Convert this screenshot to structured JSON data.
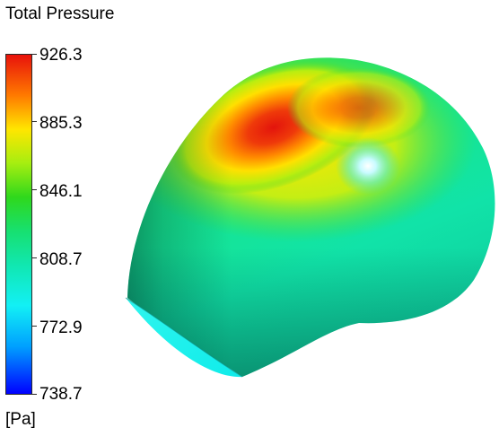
{
  "legend": {
    "title": "Total Pressure",
    "unit": "[Pa]",
    "min": 738.7,
    "max": 926.3,
    "ticks": [
      "926.3",
      "885.3",
      "846.1",
      "808.7",
      "772.9",
      "738.7"
    ],
    "tick_values": [
      926.3,
      885.3,
      846.1,
      808.7,
      772.9,
      738.7
    ]
  },
  "colors": {
    "max": "#e8120b",
    "high": "#ffe600",
    "mid": "#2fd81c",
    "low_mid": "#11e7b0",
    "low": "#12f0f5",
    "min": "#0000ff"
  },
  "render": {
    "icon": "pressure-contour-body"
  }
}
